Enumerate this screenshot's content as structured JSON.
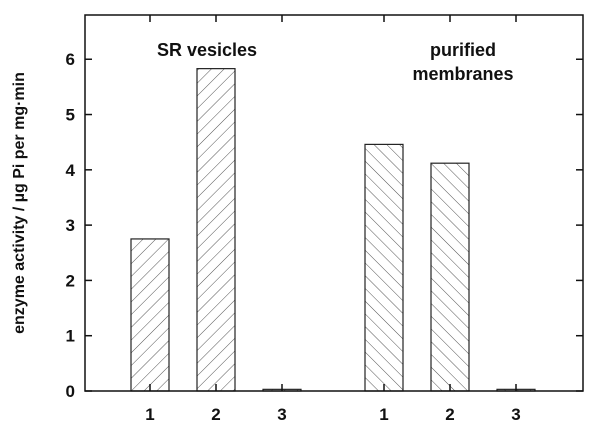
{
  "chart_data": {
    "type": "bar",
    "ylabel": "enzyme activity / µg Pi per mg·min",
    "ylim": [
      0,
      6.8
    ],
    "yticks": [
      0,
      1,
      2,
      3,
      4,
      5,
      6
    ],
    "grid": false,
    "groups": [
      {
        "label_lines": [
          "SR vesicles"
        ],
        "categories": [
          "1",
          "2",
          "3"
        ],
        "values": [
          2.75,
          5.83,
          0.03
        ],
        "hatch": "forward"
      },
      {
        "label_lines": [
          "purified",
          "membranes"
        ],
        "categories": [
          "1",
          "2",
          "3"
        ],
        "values": [
          4.46,
          4.12,
          0.03
        ],
        "hatch": "backward"
      }
    ]
  }
}
